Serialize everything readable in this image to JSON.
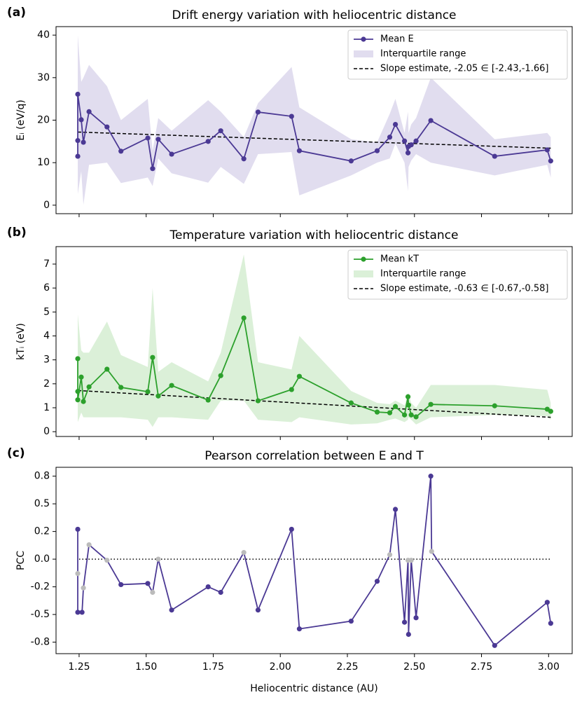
{
  "chart_data": [
    {
      "type": "line",
      "panel_label": "(a)",
      "title": "Drift energy variation with heliocentric distance",
      "ylabel": "Eᵢ (eV/q)",
      "x": [
        1.245,
        1.245,
        1.245,
        1.258,
        1.266,
        1.287,
        1.354,
        1.406,
        1.506,
        1.524,
        1.545,
        1.595,
        1.731,
        1.778,
        1.864,
        1.917,
        2.042,
        2.071,
        2.264,
        2.361,
        2.408,
        2.429,
        2.463,
        2.476,
        2.478,
        2.488,
        2.506,
        2.561,
        2.799,
        2.995,
        3.008
      ],
      "series": [
        {
          "name": "Mean E",
          "color": "#4b3994",
          "values": [
            11.5,
            15.2,
            26.1,
            20.1,
            14.8,
            22.0,
            18.4,
            12.7,
            15.8,
            8.6,
            15.5,
            12.0,
            15.0,
            17.5,
            10.9,
            21.9,
            20.9,
            12.8,
            10.4,
            12.8,
            16.0,
            19.0,
            15.1,
            12.3,
            13.8,
            14.2,
            15.1,
            19.9,
            11.5,
            13.0,
            10.4
          ]
        }
      ],
      "band": {
        "name": "Interquartile range",
        "color": "#e1ddef",
        "upper": [
          40,
          40,
          40,
          29,
          30,
          33,
          28,
          20,
          25,
          12.8,
          20.5,
          17.5,
          24.7,
          22,
          16,
          24,
          32.5,
          23,
          15.5,
          14.8,
          21.5,
          25,
          17,
          22,
          17,
          19,
          20.5,
          30,
          15.5,
          17,
          16
        ],
        "lower": [
          2.6,
          2.6,
          2.6,
          8,
          0.1,
          9.5,
          10,
          5.2,
          6.5,
          4.5,
          11,
          7.5,
          5.3,
          9,
          5,
          12,
          12.5,
          2.3,
          7,
          10,
          11,
          14.5,
          10,
          3.3,
          9,
          10.5,
          12,
          10,
          7,
          9.5,
          6.5
        ]
      },
      "trend": {
        "name": "Slope estimate, -2.05 ∈ [-2.43,-1.66]",
        "color": "#000000",
        "x": [
          1.245,
          3.008
        ],
        "values": [
          17.2,
          13.4
        ]
      },
      "xlim": [
        1.164,
        3.088
      ],
      "xticks": [
        1.25,
        1.5,
        1.75,
        2.0,
        2.25,
        2.5,
        2.75,
        3.0
      ],
      "ylim": [
        -2,
        42
      ],
      "yticks": [
        0,
        10,
        20,
        30,
        40
      ],
      "legend": "upper right"
    },
    {
      "type": "line",
      "panel_label": "(b)",
      "title": "Temperature variation with heliocentric distance",
      "ylabel": "kTᵢ (eV)",
      "x": [
        1.245,
        1.245,
        1.245,
        1.258,
        1.266,
        1.287,
        1.354,
        1.406,
        1.506,
        1.524,
        1.545,
        1.595,
        1.731,
        1.778,
        1.864,
        1.917,
        2.042,
        2.071,
        2.264,
        2.361,
        2.408,
        2.429,
        2.463,
        2.476,
        2.478,
        2.488,
        2.506,
        2.561,
        2.799,
        2.995,
        3.008
      ],
      "series": [
        {
          "name": "Mean kT",
          "color": "#2ca02c",
          "values": [
            3.05,
            1.68,
            1.33,
            2.28,
            1.26,
            1.87,
            2.61,
            1.85,
            1.67,
            3.1,
            1.49,
            1.93,
            1.32,
            2.34,
            4.75,
            1.29,
            1.76,
            2.31,
            1.2,
            0.82,
            0.79,
            1.05,
            0.7,
            1.46,
            1.11,
            0.7,
            0.62,
            1.14,
            1.08,
            0.94,
            0.85
          ]
        }
      ],
      "band": {
        "name": "Interquartile range",
        "color": "#dbf0d8",
        "upper": [
          4.9,
          4.9,
          4.9,
          3.4,
          3.3,
          3.3,
          4.6,
          3.2,
          2.7,
          6.0,
          2.5,
          2.9,
          2.1,
          3.3,
          7.4,
          2.9,
          2.6,
          4.0,
          1.7,
          1.2,
          1.15,
          1.3,
          1.1,
          1.6,
          1.6,
          1.2,
          1.0,
          1.95,
          1.95,
          1.75,
          1.2
        ],
        "lower": [
          0.4,
          0.4,
          0.4,
          0.8,
          0.6,
          0.6,
          0.6,
          0.6,
          0.5,
          0.2,
          0.6,
          0.6,
          0.5,
          1.3,
          1.3,
          0.5,
          0.4,
          0.6,
          0.3,
          0.35,
          0.5,
          0.55,
          0.4,
          0.5,
          0.6,
          0.5,
          0.3,
          0.6,
          0.7,
          0.65,
          0.5
        ]
      },
      "trend": {
        "name": "Slope estimate, -0.63 ∈ [-0.67,-0.58]",
        "color": "#000000",
        "x": [
          1.245,
          3.008
        ],
        "values": [
          1.72,
          0.6
        ]
      },
      "xlim": [
        1.164,
        3.088
      ],
      "xticks": [
        1.25,
        1.5,
        1.75,
        2.0,
        2.25,
        2.5,
        2.75,
        3.0
      ],
      "ylim": [
        -0.2,
        7.73
      ],
      "yticks": [
        0,
        1,
        2,
        3,
        4,
        5,
        6,
        7
      ],
      "legend": "upper right"
    },
    {
      "type": "line",
      "panel_label": "(c)",
      "title": "Pearson correlation between E and T",
      "ylabel": "PCC",
      "xlabel": "Heliocentric distance (AU)",
      "x": [
        1.245,
        1.245,
        1.245,
        1.261,
        1.266,
        1.287,
        1.354,
        1.406,
        1.506,
        1.524,
        1.545,
        1.595,
        1.731,
        1.778,
        1.864,
        1.917,
        2.042,
        2.071,
        2.264,
        2.361,
        2.408,
        2.429,
        2.463,
        2.476,
        2.478,
        2.488,
        2.506,
        2.561,
        2.564,
        2.799,
        2.995,
        3.008
      ],
      "series": [
        {
          "color": "#4b3994",
          "values": [
            0.27,
            -0.13,
            -0.48,
            -0.48,
            -0.26,
            0.13,
            -0.01,
            -0.23,
            -0.22,
            -0.3,
            0.0,
            -0.46,
            -0.25,
            -0.3,
            0.06,
            -0.46,
            0.27,
            -0.63,
            -0.56,
            -0.2,
            0.04,
            0.45,
            -0.57,
            -0.01,
            -0.68,
            -0.01,
            -0.53,
            0.75,
            0.07,
            -0.78,
            -0.39,
            -0.58
          ],
          "marker_colors": [
            "#4b3994",
            "#bbbbbb",
            "#4b3994",
            "#4b3994",
            "#bbbbbb",
            "#bbbbbb",
            "#bbbbbb",
            "#4b3994",
            "#4b3994",
            "#bbbbbb",
            "#bbbbbb",
            "#4b3994",
            "#4b3994",
            "#4b3994",
            "#bbbbbb",
            "#4b3994",
            "#4b3994",
            "#4b3994",
            "#4b3994",
            "#4b3994",
            "#bbbbbb",
            "#4b3994",
            "#4b3994",
            "#bbbbbb",
            "#4b3994",
            "#bbbbbb",
            "#4b3994",
            "#4b3994",
            "#bbbbbb",
            "#4b3994",
            "#4b3994",
            "#4b3994"
          ]
        }
      ],
      "reference_line": 0,
      "xlim": [
        1.164,
        3.088
      ],
      "xticks": [
        1.25,
        {
          "value": 1.5,
          "label": "1.50"
        },
        1.75,
        {
          "value": 2.0,
          "label": "2.00"
        },
        2.25,
        {
          "value": 2.5,
          "label": "2.50"
        },
        2.75,
        {
          "value": 3.0,
          "label": "3.00"
        }
      ],
      "ylim": [
        -0.854,
        0.83
      ],
      "yticks": [
        {
          "value": -0.75,
          "label": "-0.8"
        },
        {
          "value": -0.5,
          "label": "-0.5"
        },
        {
          "value": -0.25,
          "label": "-0.2"
        },
        {
          "value": 0,
          "label": "0.0"
        },
        {
          "value": 0.25,
          "label": "0.2"
        },
        {
          "value": 0.5,
          "label": "0.5"
        },
        {
          "value": 0.75,
          "label": "0.8"
        }
      ]
    }
  ]
}
